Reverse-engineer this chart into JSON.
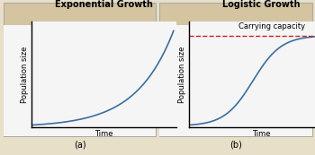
{
  "panel_a_title": "Exponential Growth",
  "panel_b_title": "Logistic Growth",
  "label_a": "(a)",
  "label_b": "(b)",
  "xlabel": "Time",
  "ylabel": "Population size",
  "carrying_capacity_label": "Carrying capacity",
  "header_bg_color": "#d4c4a0",
  "outer_bg_color": "#e8dfc8",
  "inner_bg_color": "#f5f5f5",
  "border_color": "#aaaaaa",
  "curve_color": "#3a6fa0",
  "dashed_line_color": "#cc2222",
  "title_fontsize": 7,
  "axis_label_fontsize": 6,
  "annotation_fontsize": 6,
  "sublabel_fontsize": 7
}
